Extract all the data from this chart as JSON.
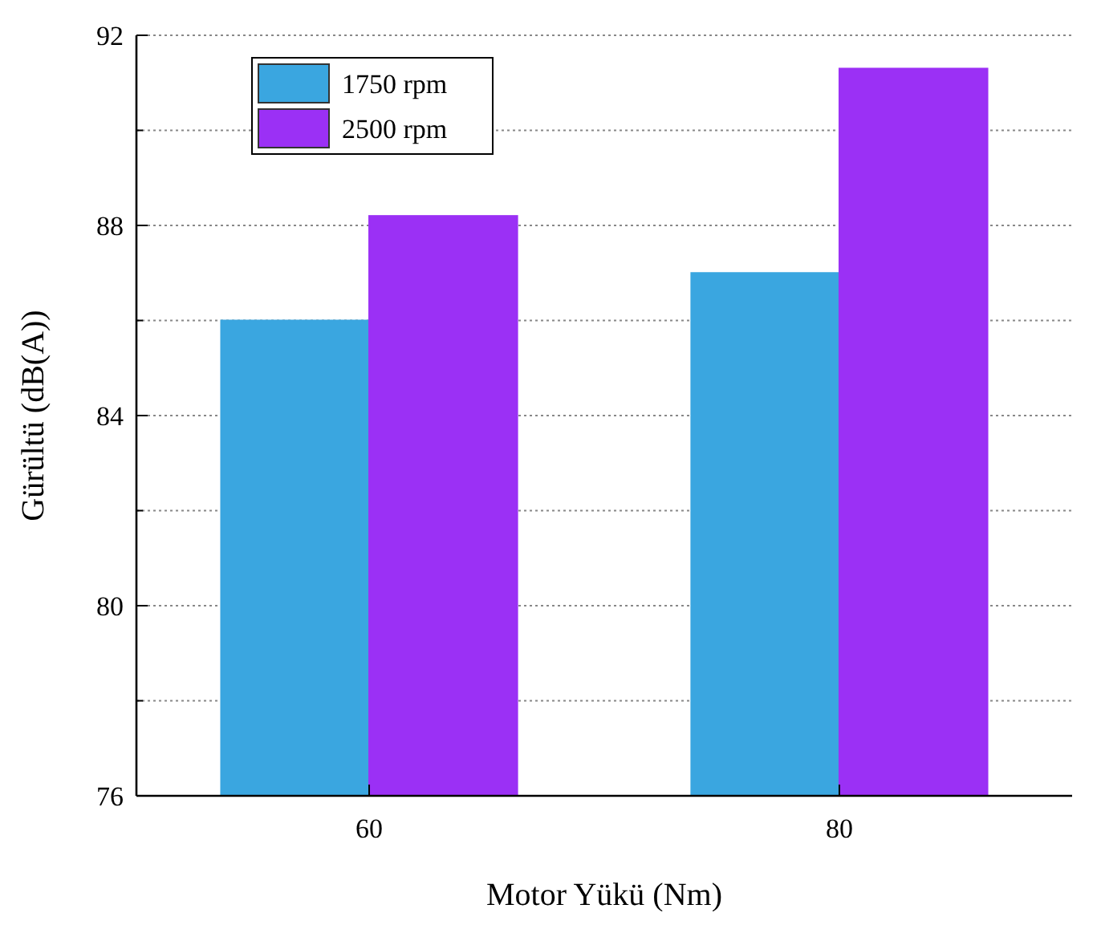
{
  "chart_data": {
    "type": "bar",
    "xlabel": "Motor Yükü (Nm)",
    "ylabel": "Gürültü (dB(A))",
    "categories": [
      "60",
      "80"
    ],
    "series": [
      {
        "name": "1750 rpm",
        "color": "#3aa6e0",
        "values": [
          86.0,
          87.0
        ]
      },
      {
        "name": "2500 rpm",
        "color": "#9b30f5",
        "values": [
          88.2,
          91.3
        ]
      }
    ],
    "ylim": [
      76,
      92
    ],
    "yticks": [
      76,
      {
        "value": 78,
        "label": null
      },
      80,
      {
        "value": 82,
        "label": null
      },
      84,
      {
        "value": 86,
        "label": null
      },
      88,
      {
        "value": 90,
        "label": null
      },
      92
    ],
    "grid": "y",
    "legend": "top left"
  }
}
